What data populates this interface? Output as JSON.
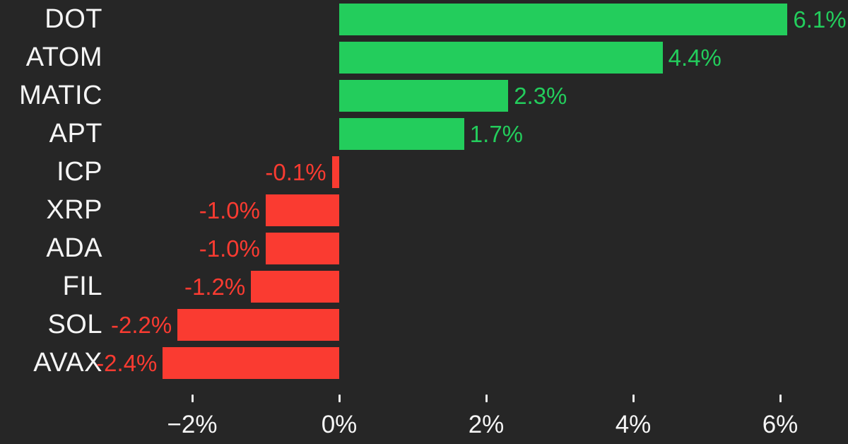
{
  "chart_data": {
    "type": "bar",
    "orientation": "horizontal",
    "title": "",
    "xlabel": "",
    "ylabel": "",
    "categories": [
      "DOT",
      "ATOM",
      "MATIC",
      "APT",
      "ICP",
      "XRP",
      "ADA",
      "FIL",
      "SOL",
      "AVAX"
    ],
    "values": [
      6.1,
      4.4,
      2.3,
      1.7,
      -0.1,
      -1.0,
      -1.0,
      -1.2,
      -2.2,
      -2.4
    ],
    "value_labels": [
      "6.1%",
      "4.4%",
      "2.3%",
      "1.7%",
      "-0.1%",
      "-1.0%",
      "-1.0%",
      "-1.2%",
      "-2.2%",
      "-2.4%"
    ],
    "x_ticks": [
      -2,
      0,
      2,
      4,
      6
    ],
    "x_tick_labels": [
      "−2%",
      "0%",
      "2%",
      "4%",
      "6%"
    ],
    "xlim": [
      -2.9,
      6.95
    ],
    "grid": false,
    "legend": false,
    "colors": {
      "positive": "#23cd5c",
      "negative": "#fa3b31",
      "background": "#262626",
      "category_label": "#f5f5f5",
      "axis_label": "#f5f5f5",
      "tick_mark": "#ececec"
    }
  }
}
